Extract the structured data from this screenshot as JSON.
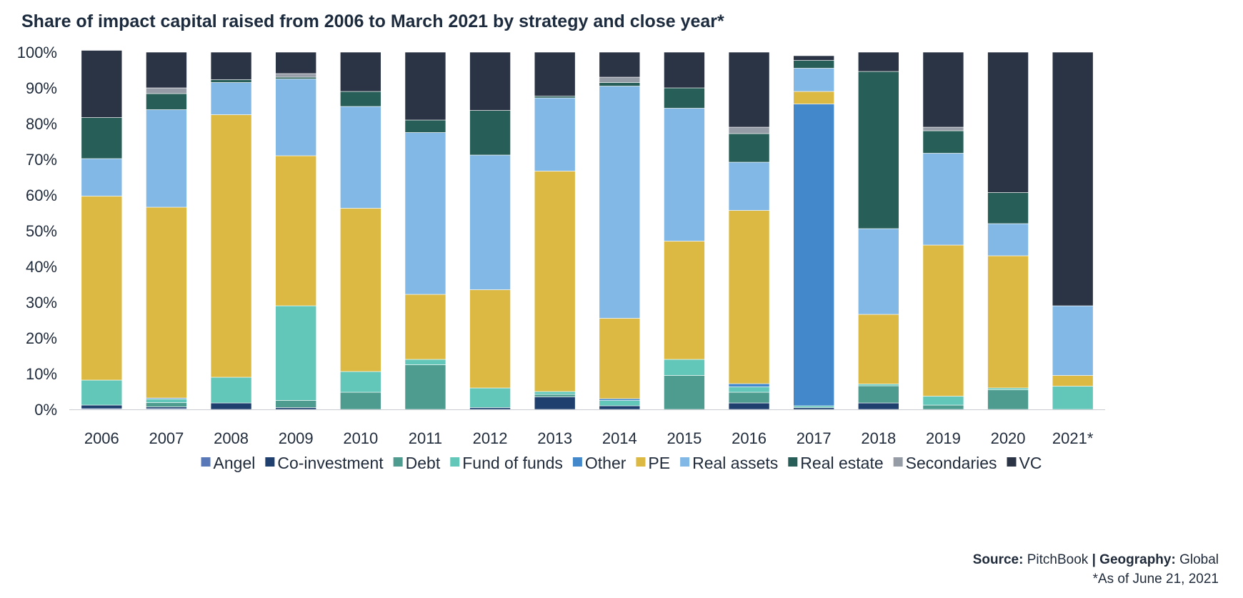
{
  "chart_data": {
    "type": "bar",
    "stacked": true,
    "title": "Share of impact capital raised from 2006 to March 2021 by strategy and close year*",
    "categories": [
      "2006",
      "2007",
      "2008",
      "2009",
      "2010",
      "2011",
      "2012",
      "2013",
      "2014",
      "2015",
      "2016",
      "2017",
      "2018",
      "2019",
      "2020",
      "2021*"
    ],
    "ylim": [
      0,
      100
    ],
    "yticks": [
      "0%",
      "10%",
      "20%",
      "30%",
      "40%",
      "50%",
      "60%",
      "70%",
      "80%",
      "90%",
      "100%"
    ],
    "grid": false,
    "legend_position": "bottom",
    "series": [
      {
        "name": "Angel",
        "color": "#5878b8",
        "values": [
          0.2,
          0.2,
          0,
          0,
          0,
          0,
          0,
          0,
          0,
          0,
          0,
          0,
          0,
          0,
          0,
          0
        ]
      },
      {
        "name": "Co-investment",
        "color": "#1f3f6e",
        "values": [
          1.0,
          0.5,
          1.8,
          0.5,
          0,
          0,
          0.5,
          3.5,
          1.0,
          0,
          1.8,
          0.5,
          1.8,
          0,
          0,
          0
        ]
      },
      {
        "name": "Debt",
        "color": "#4e9b8f",
        "values": [
          0,
          1.2,
          0,
          2.0,
          4.8,
          12.5,
          0,
          0.7,
          0,
          9.5,
          3.0,
          0,
          4.8,
          1.2,
          5.5,
          0
        ]
      },
      {
        "name": "Fund of funds",
        "color": "#62c6b8",
        "values": [
          7.0,
          1.0,
          7.2,
          26.5,
          5.8,
          1.5,
          5.5,
          0.8,
          1.5,
          4.5,
          1.5,
          0.5,
          0.5,
          2.5,
          0.5,
          6.5
        ]
      },
      {
        "name": "Other",
        "color": "#4288cb",
        "values": [
          0,
          0.3,
          0,
          0,
          0,
          0,
          0,
          0,
          0.5,
          0,
          0.9,
          84.5,
          0,
          0,
          0,
          0
        ]
      },
      {
        "name": "PE",
        "color": "#dcb942",
        "values": [
          51.5,
          53.4,
          73.5,
          42.0,
          45.7,
          18.2,
          27.5,
          61.7,
          22.5,
          33.1,
          48.5,
          3.5,
          19.5,
          42.3,
          37.0,
          3.0
        ]
      },
      {
        "name": "Real assets",
        "color": "#82b8e6",
        "values": [
          10.5,
          27.3,
          9.0,
          21.5,
          28.5,
          45.3,
          37.7,
          20.5,
          65.0,
          37.2,
          13.5,
          6.5,
          24.0,
          25.7,
          9.0,
          19.5
        ]
      },
      {
        "name": "Real estate",
        "color": "#275e57",
        "values": [
          11.5,
          4.5,
          0.8,
          0.5,
          4.2,
          3.5,
          12.5,
          0.5,
          1.0,
          5.7,
          8.0,
          2.2,
          44.0,
          6.3,
          8.7,
          0
        ]
      },
      {
        "name": "Secondaries",
        "color": "#959ca6",
        "values": [
          0,
          1.6,
          0,
          1.0,
          0,
          0,
          0,
          0,
          1.5,
          0,
          1.8,
          0,
          0,
          1.0,
          0,
          0
        ]
      },
      {
        "name": "VC",
        "color": "#2b3445",
        "values": [
          18.8,
          10.0,
          7.7,
          6.0,
          11.0,
          19.0,
          16.3,
          12.3,
          7.0,
          10.0,
          21.0,
          1.3,
          5.4,
          21.0,
          39.3,
          71.0
        ]
      }
    ]
  },
  "source": {
    "source_label": "Source:",
    "source_value": "PitchBook",
    "separator": "|",
    "geo_label": "Geography:",
    "geo_value": "Global",
    "footnote": "*As of June 21, 2021"
  }
}
